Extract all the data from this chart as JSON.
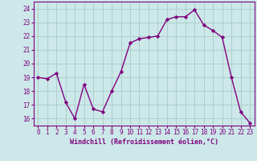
{
  "x": [
    0,
    1,
    2,
    3,
    4,
    5,
    6,
    7,
    8,
    9,
    10,
    11,
    12,
    13,
    14,
    15,
    16,
    17,
    18,
    19,
    20,
    21,
    22,
    23
  ],
  "y": [
    19.0,
    18.9,
    19.3,
    17.2,
    16.0,
    18.5,
    16.7,
    16.5,
    18.0,
    19.4,
    21.5,
    21.8,
    21.9,
    22.0,
    23.2,
    23.4,
    23.4,
    23.9,
    22.8,
    22.4,
    21.9,
    19.0,
    16.5,
    15.7
  ],
  "line_color": "#800080",
  "marker": "D",
  "marker_size": 2.2,
  "bg_color": "#cce8e8",
  "grid_color": "#aacaca",
  "xlabel": "Windchill (Refroidissement éolien,°C)",
  "ylim": [
    15.5,
    24.5
  ],
  "yticks": [
    16,
    17,
    18,
    19,
    20,
    21,
    22,
    23,
    24
  ],
  "xticks": [
    0,
    1,
    2,
    3,
    4,
    5,
    6,
    7,
    8,
    9,
    10,
    11,
    12,
    13,
    14,
    15,
    16,
    17,
    18,
    19,
    20,
    21,
    22,
    23
  ],
  "xlabel_color": "#800080",
  "tick_color": "#800080",
  "line_width": 1.0,
  "tick_fontsize": 5.5,
  "xlabel_fontsize": 6.0
}
